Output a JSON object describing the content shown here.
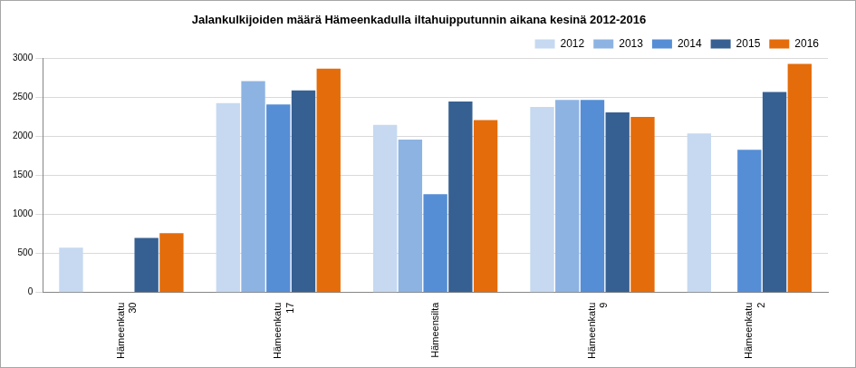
{
  "chart_data": {
    "type": "bar",
    "title": "Jalankulkijoiden määrä Hämeenkadulla iltahuipputunnin aikana kesinä 2012-2016",
    "categories": [
      "Hämeenkatu 30",
      "Hämeenkatu 17",
      "Hämeensilta",
      "Hämeenkatu 9",
      "Hämeenkatu 2"
    ],
    "series": [
      {
        "name": "2012",
        "color": "#c6d9f1",
        "values": [
          575,
          2430,
          2150,
          2380,
          2040
        ]
      },
      {
        "name": "2013",
        "color": "#8db3e2",
        "values": [
          null,
          2710,
          1960,
          2470,
          null
        ]
      },
      {
        "name": "2014",
        "color": "#558ed5",
        "values": [
          null,
          2410,
          1260,
          2470,
          1830
        ]
      },
      {
        "name": "2015",
        "color": "#376092",
        "values": [
          700,
          2590,
          2450,
          2310,
          2570
        ]
      },
      {
        "name": "2016",
        "color": "#e46c0a",
        "values": [
          760,
          2870,
          2210,
          2250,
          2930
        ]
      }
    ],
    "ylim": [
      0,
      3000
    ],
    "yticks": [
      0,
      500,
      1000,
      1500,
      2000,
      2500,
      3000
    ],
    "grid": true,
    "legend": "top-right"
  }
}
